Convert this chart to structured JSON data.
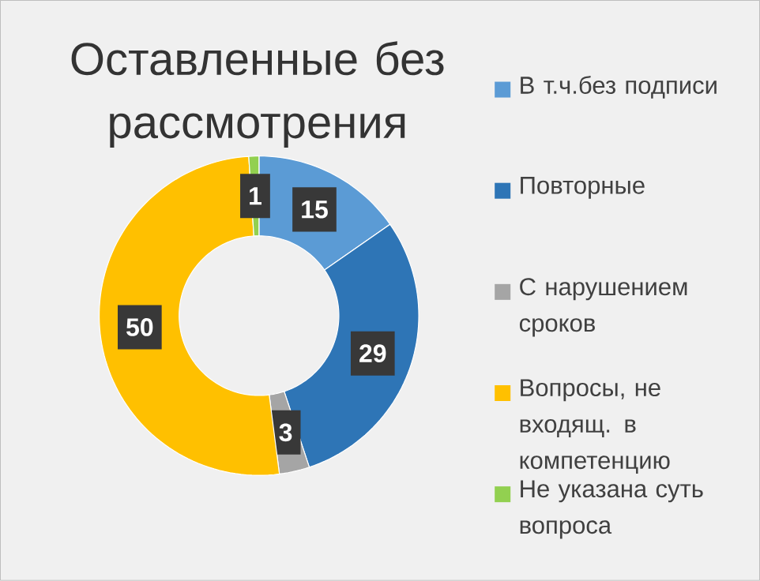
{
  "chart_data": {
    "type": "donut",
    "title": "Оставленные без рассмотрения",
    "categories": [
      "В т.ч.без подписи",
      "Повторные",
      "С нарушением сроков",
      "Вопросы, не входящ. в компетенцию",
      "Не указана суть вопроса"
    ],
    "values": [
      15,
      29,
      3,
      50,
      1
    ],
    "colors": [
      "#5b9bd5",
      "#2e75b6",
      "#a5a5a5",
      "#ffc000",
      "#92d050"
    ],
    "data_labels": true,
    "legend": "right"
  }
}
